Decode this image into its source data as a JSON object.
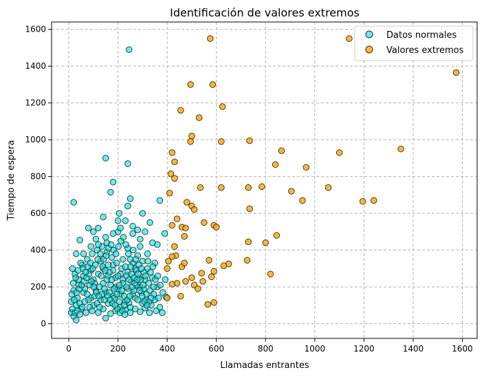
{
  "chart_data": {
    "type": "scatter",
    "title": "Identificación de valores extremos",
    "xlabel": "Llamadas entrantes",
    "ylabel": "Tiempo de espera",
    "xlim": [
      -70,
      1660
    ],
    "ylim": [
      -80,
      1640
    ],
    "x_ticks": [
      0,
      200,
      400,
      600,
      800,
      1000,
      1200,
      1400,
      1600
    ],
    "y_ticks": [
      0,
      200,
      400,
      600,
      800,
      1000,
      1200,
      1400,
      1600
    ],
    "grid": true,
    "grid_style": "dashed",
    "legend_position": "top-right",
    "series": [
      {
        "name": "Datos normales",
        "color": "#00e5e5",
        "edge_color": "#2b2b2b",
        "points": [
          [
            245,
            1490
          ],
          [
            150,
            900
          ],
          [
            240,
            870
          ],
          [
            180,
            770
          ],
          [
            20,
            660
          ],
          [
            170,
            715
          ],
          [
            250,
            680
          ],
          [
            370,
            670
          ],
          [
            240,
            640
          ],
          [
            80,
            520
          ],
          [
            205,
            600
          ],
          [
            300,
            600
          ],
          [
            120,
            520
          ],
          [
            200,
            560
          ],
          [
            140,
            580
          ],
          [
            230,
            560
          ],
          [
            330,
            550
          ],
          [
            45,
            455
          ],
          [
            260,
            490
          ],
          [
            390,
            490
          ],
          [
            290,
            460
          ],
          [
            110,
            460
          ],
          [
            360,
            430
          ],
          [
            240,
            410
          ],
          [
            30,
            380
          ],
          [
            290,
            420
          ],
          [
            155,
            440
          ],
          [
            200,
            500
          ],
          [
            320,
            380
          ],
          [
            350,
            330
          ],
          [
            270,
            300
          ],
          [
            220,
            350
          ],
          [
            180,
            320
          ],
          [
            130,
            340
          ],
          [
            90,
            290
          ],
          [
            60,
            260
          ],
          [
            40,
            240
          ],
          [
            20,
            180
          ],
          [
            10,
            120
          ],
          [
            30,
            100
          ],
          [
            50,
            80
          ],
          [
            70,
            60
          ],
          [
            90,
            140
          ],
          [
            110,
            180
          ],
          [
            140,
            220
          ],
          [
            160,
            260
          ],
          [
            190,
            200
          ],
          [
            210,
            160
          ],
          [
            230,
            120
          ],
          [
            250,
            90
          ],
          [
            270,
            140
          ],
          [
            290,
            200
          ],
          [
            310,
            240
          ],
          [
            330,
            180
          ],
          [
            350,
            130
          ],
          [
            370,
            90
          ],
          [
            380,
            60
          ],
          [
            360,
            200
          ],
          [
            340,
            250
          ],
          [
            320,
            300
          ],
          [
            300,
            340
          ],
          [
            280,
            370
          ],
          [
            260,
            330
          ],
          [
            240,
            280
          ],
          [
            220,
            240
          ],
          [
            200,
            190
          ],
          [
            180,
            150
          ],
          [
            160,
            110
          ],
          [
            140,
            80
          ],
          [
            120,
            60
          ],
          [
            100,
            100
          ],
          [
            80,
            130
          ],
          [
            60,
            170
          ],
          [
            40,
            210
          ],
          [
            25,
            270
          ],
          [
            15,
            300
          ],
          [
            55,
            320
          ],
          [
            75,
            350
          ],
          [
            95,
            380
          ],
          [
            115,
            400
          ],
          [
            135,
            420
          ],
          [
            155,
            390
          ],
          [
            175,
            360
          ],
          [
            195,
            330
          ],
          [
            215,
            300
          ],
          [
            235,
            260
          ],
          [
            255,
            230
          ],
          [
            275,
            210
          ],
          [
            295,
            170
          ],
          [
            315,
            130
          ],
          [
            335,
            100
          ],
          [
            355,
            70
          ],
          [
            150,
            30
          ],
          [
            170,
            55
          ],
          [
            190,
            70
          ],
          [
            210,
            90
          ],
          [
            230,
            75
          ],
          [
            250,
            60
          ],
          [
            270,
            80
          ],
          [
            290,
            65
          ],
          [
            310,
            85
          ],
          [
            130,
            130
          ],
          [
            150,
            170
          ],
          [
            170,
            210
          ],
          [
            190,
            250
          ],
          [
            210,
            270
          ],
          [
            230,
            310
          ],
          [
            250,
            350
          ],
          [
            100,
            240
          ],
          [
            120,
            270
          ],
          [
            140,
            300
          ],
          [
            160,
            320
          ],
          [
            180,
            290
          ],
          [
            200,
            260
          ],
          [
            220,
            220
          ],
          [
            240,
            190
          ],
          [
            260,
            160
          ],
          [
            280,
            130
          ],
          [
            300,
            110
          ],
          [
            65,
            190
          ],
          [
            85,
            210
          ],
          [
            105,
            220
          ],
          [
            125,
            200
          ],
          [
            145,
            190
          ],
          [
            165,
            170
          ],
          [
            185,
            140
          ],
          [
            205,
            120
          ],
          [
            225,
            100
          ],
          [
            245,
            115
          ],
          [
            265,
            180
          ],
          [
            285,
            250
          ],
          [
            305,
            280
          ],
          [
            325,
            220
          ],
          [
            345,
            160
          ],
          [
            365,
            140
          ],
          [
            395,
            145
          ],
          [
            35,
            140
          ],
          [
            45,
            110
          ],
          [
            55,
            90
          ],
          [
            65,
            120
          ],
          [
            75,
            160
          ],
          [
            85,
            90
          ],
          [
            95,
            70
          ],
          [
            105,
            150
          ],
          [
            115,
            110
          ],
          [
            125,
            90
          ],
          [
            135,
            160
          ],
          [
            145,
            130
          ],
          [
            155,
            240
          ],
          [
            165,
            280
          ],
          [
            175,
            240
          ],
          [
            185,
            190
          ],
          [
            195,
            160
          ],
          [
            205,
            210
          ],
          [
            215,
            180
          ],
          [
            225,
            150
          ],
          [
            235,
            200
          ],
          [
            245,
            240
          ],
          [
            255,
            270
          ],
          [
            265,
            250
          ],
          [
            275,
            290
          ],
          [
            285,
            320
          ],
          [
            295,
            300
          ],
          [
            305,
            190
          ],
          [
            315,
            160
          ],
          [
            325,
            120
          ],
          [
            335,
            140
          ],
          [
            345,
            200
          ],
          [
            10,
            60
          ],
          [
            20,
            40
          ],
          [
            30,
            20
          ],
          [
            15,
            80
          ],
          [
            25,
            60
          ],
          [
            35,
            70
          ],
          [
            45,
            50
          ],
          [
            12,
            160
          ],
          [
            22,
            130
          ],
          [
            32,
            170
          ],
          [
            42,
            190
          ],
          [
            52,
            210
          ],
          [
            62,
            230
          ],
          [
            72,
            250
          ],
          [
            82,
            270
          ],
          [
            92,
            230
          ],
          [
            102,
            200
          ],
          [
            112,
            170
          ],
          [
            122,
            150
          ],
          [
            132,
            260
          ],
          [
            142,
            350
          ],
          [
            152,
            370
          ],
          [
            162,
            410
          ],
          [
            172,
            430
          ],
          [
            182,
            400
          ],
          [
            192,
            380
          ],
          [
            202,
            420
          ],
          [
            212,
            450
          ],
          [
            222,
            470
          ],
          [
            232,
            430
          ],
          [
            242,
            380
          ],
          [
            252,
            310
          ],
          [
            262,
            400
          ],
          [
            272,
            350
          ],
          [
            282,
            270
          ],
          [
            292,
            240
          ],
          [
            302,
            210
          ],
          [
            312,
            260
          ],
          [
            322,
            340
          ],
          [
            332,
            280
          ],
          [
            342,
            310
          ],
          [
            352,
            240
          ],
          [
            362,
            260
          ],
          [
            372,
            210
          ],
          [
            382,
            170
          ],
          [
            392,
            240
          ],
          [
            18,
            220
          ],
          [
            28,
            250
          ],
          [
            38,
            290
          ],
          [
            48,
            330
          ],
          [
            58,
            300
          ],
          [
            68,
            280
          ],
          [
            78,
            310
          ],
          [
            88,
            330
          ],
          [
            98,
            300
          ],
          [
            108,
            320
          ],
          [
            118,
            350
          ],
          [
            128,
            380
          ],
          [
            138,
            310
          ],
          [
            148,
            290
          ],
          [
            158,
            150
          ],
          [
            168,
            130
          ],
          [
            178,
            110
          ],
          [
            188,
            100
          ],
          [
            198,
            80
          ],
          [
            208,
            60
          ],
          [
            218,
            70
          ],
          [
            228,
            50
          ],
          [
            238,
            130
          ],
          [
            248,
            150
          ],
          [
            258,
            200
          ],
          [
            268,
            220
          ],
          [
            278,
            240
          ],
          [
            288,
            180
          ],
          [
            298,
            150
          ],
          [
            308,
            120
          ],
          [
            318,
            100
          ],
          [
            328,
            60
          ],
          [
            100,
            500
          ],
          [
            260,
            530
          ],
          [
            210,
            520
          ],
          [
            150,
            470
          ],
          [
            280,
            510
          ],
          [
            310,
            500
          ],
          [
            120,
            430
          ],
          [
            340,
            440
          ],
          [
            180,
            490
          ],
          [
            60,
            380
          ],
          [
            90,
            420
          ]
        ]
      },
      {
        "name": "Valores extremos",
        "color": "#ffa500",
        "edge_color": "#2b2b2b",
        "points": [
          [
            575,
            1550
          ],
          [
            1140,
            1550
          ],
          [
            1575,
            1365
          ],
          [
            495,
            1300
          ],
          [
            585,
            1300
          ],
          [
            455,
            1160
          ],
          [
            530,
            1120
          ],
          [
            625,
            1180
          ],
          [
            500,
            1020
          ],
          [
            495,
            990
          ],
          [
            620,
            990
          ],
          [
            735,
            995
          ],
          [
            420,
            930
          ],
          [
            865,
            940
          ],
          [
            1100,
            930
          ],
          [
            1350,
            950
          ],
          [
            430,
            880
          ],
          [
            840,
            865
          ],
          [
            965,
            850
          ],
          [
            415,
            815
          ],
          [
            430,
            790
          ],
          [
            410,
            710
          ],
          [
            535,
            740
          ],
          [
            620,
            740
          ],
          [
            730,
            740
          ],
          [
            785,
            745
          ],
          [
            905,
            720
          ],
          [
            1055,
            740
          ],
          [
            950,
            670
          ],
          [
            1195,
            665
          ],
          [
            1240,
            670
          ],
          [
            480,
            660
          ],
          [
            500,
            640
          ],
          [
            510,
            620
          ],
          [
            735,
            625
          ],
          [
            440,
            570
          ],
          [
            420,
            535
          ],
          [
            460,
            525
          ],
          [
            475,
            520
          ],
          [
            550,
            550
          ],
          [
            590,
            535
          ],
          [
            600,
            525
          ],
          [
            470,
            475
          ],
          [
            845,
            480
          ],
          [
            800,
            440
          ],
          [
            730,
            445
          ],
          [
            430,
            420
          ],
          [
            435,
            370
          ],
          [
            420,
            365
          ],
          [
            570,
            345
          ],
          [
            725,
            345
          ],
          [
            405,
            340
          ],
          [
            400,
            300
          ],
          [
            460,
            310
          ],
          [
            470,
            330
          ],
          [
            650,
            325
          ],
          [
            630,
            315
          ],
          [
            590,
            285
          ],
          [
            540,
            275
          ],
          [
            820,
            270
          ],
          [
            500,
            250
          ],
          [
            580,
            255
          ],
          [
            545,
            230
          ],
          [
            475,
            230
          ],
          [
            440,
            220
          ],
          [
            420,
            215
          ],
          [
            510,
            210
          ],
          [
            525,
            190
          ],
          [
            455,
            150
          ],
          [
            400,
            140
          ],
          [
            590,
            115
          ],
          [
            565,
            105
          ]
        ]
      }
    ]
  }
}
